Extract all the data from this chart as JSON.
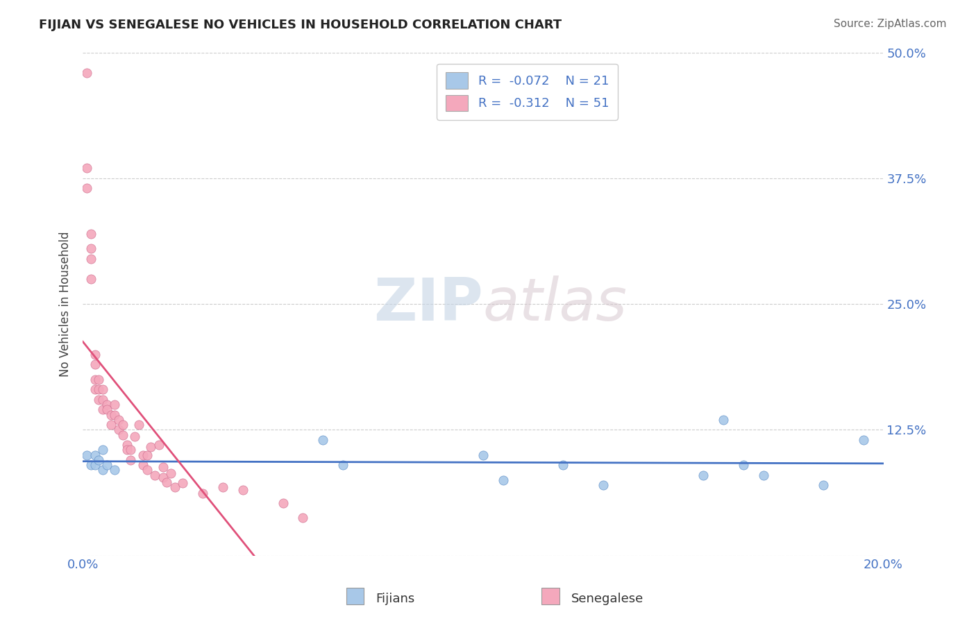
{
  "title": "FIJIAN VS SENEGALESE NO VEHICLES IN HOUSEHOLD CORRELATION CHART",
  "source": "Source: ZipAtlas.com",
  "ylabel": "No Vehicles in Household",
  "y_ticks": [
    0.0,
    0.125,
    0.25,
    0.375,
    0.5
  ],
  "y_tick_labels": [
    "",
    "12.5%",
    "25.0%",
    "37.5%",
    "50.0%"
  ],
  "x_ticks": [
    0.0,
    0.05,
    0.1,
    0.15,
    0.2
  ],
  "x_tick_labels": [
    "0.0%",
    "",
    "",
    "",
    "20.0%"
  ],
  "fijian_color": "#a8c8e8",
  "senegalese_color": "#f4a8bc",
  "fijian_line_color": "#4472c4",
  "senegalese_line_color": "#e0507a",
  "R_fijian": -0.072,
  "N_fijian": 21,
  "R_senegalese": -0.312,
  "N_senegalese": 51,
  "watermark_zip": "ZIP",
  "watermark_atlas": "atlas",
  "background_color": "#ffffff",
  "grid_color": "#cccccc",
  "xlim": [
    0.0,
    0.2
  ],
  "ylim": [
    0.0,
    0.5
  ],
  "fijian_x": [
    0.001,
    0.002,
    0.003,
    0.003,
    0.004,
    0.005,
    0.005,
    0.006,
    0.008,
    0.06,
    0.065,
    0.1,
    0.105,
    0.12,
    0.13,
    0.155,
    0.16,
    0.165,
    0.17,
    0.185,
    0.195
  ],
  "fijian_y": [
    0.1,
    0.09,
    0.1,
    0.09,
    0.095,
    0.105,
    0.085,
    0.09,
    0.085,
    0.115,
    0.09,
    0.1,
    0.075,
    0.09,
    0.07,
    0.08,
    0.135,
    0.09,
    0.08,
    0.07,
    0.115
  ],
  "senegalese_x": [
    0.001,
    0.001,
    0.001,
    0.002,
    0.002,
    0.002,
    0.002,
    0.003,
    0.003,
    0.003,
    0.003,
    0.004,
    0.004,
    0.004,
    0.005,
    0.005,
    0.005,
    0.006,
    0.006,
    0.007,
    0.007,
    0.008,
    0.008,
    0.009,
    0.009,
    0.01,
    0.01,
    0.011,
    0.011,
    0.012,
    0.012,
    0.013,
    0.014,
    0.015,
    0.015,
    0.016,
    0.016,
    0.017,
    0.018,
    0.019,
    0.02,
    0.02,
    0.021,
    0.022,
    0.023,
    0.025,
    0.03,
    0.035,
    0.04,
    0.05,
    0.055
  ],
  "senegalese_y": [
    0.48,
    0.385,
    0.365,
    0.32,
    0.305,
    0.295,
    0.275,
    0.2,
    0.19,
    0.175,
    0.165,
    0.175,
    0.165,
    0.155,
    0.165,
    0.155,
    0.145,
    0.15,
    0.145,
    0.14,
    0.13,
    0.15,
    0.14,
    0.135,
    0.125,
    0.13,
    0.12,
    0.11,
    0.105,
    0.105,
    0.095,
    0.118,
    0.13,
    0.1,
    0.09,
    0.1,
    0.085,
    0.108,
    0.08,
    0.11,
    0.088,
    0.078,
    0.073,
    0.082,
    0.068,
    0.072,
    0.062,
    0.068,
    0.065,
    0.052,
    0.038
  ]
}
